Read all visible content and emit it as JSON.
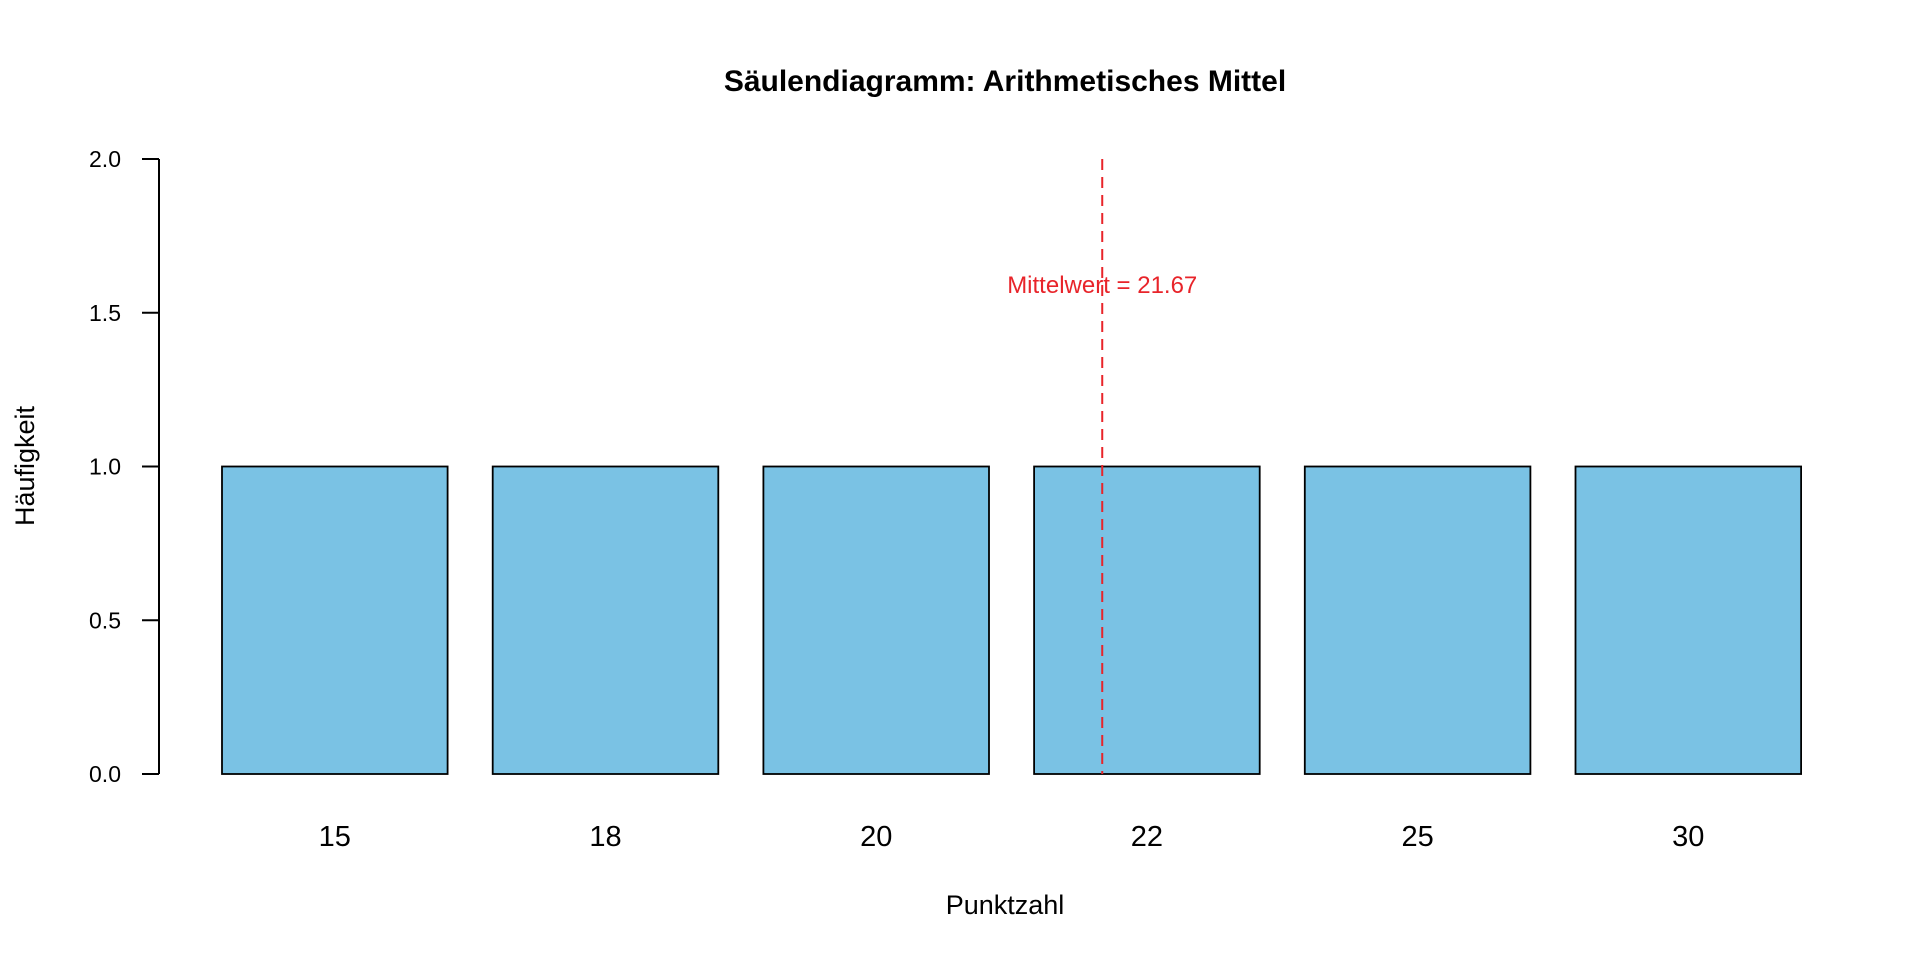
{
  "chart_data": {
    "type": "bar",
    "title": "Säulendiagramm: Arithmetisches Mittel",
    "xlabel": "Punktzahl",
    "ylabel": "Häufigkeit",
    "categories": [
      "15",
      "18",
      "20",
      "22",
      "25",
      "30"
    ],
    "values": [
      1,
      1,
      1,
      1,
      1,
      1
    ],
    "ylim": [
      0,
      2
    ],
    "yticks": [
      "0.0",
      "0.5",
      "1.0",
      "1.5",
      "2.0"
    ],
    "bar_color": "#7AC2E4",
    "bar_edge_color": "#000000",
    "grid": false,
    "legend": "none",
    "mean_line": {
      "value": 21.67,
      "color": "#E8242A",
      "label": "Mittelwert = 21.67"
    }
  }
}
